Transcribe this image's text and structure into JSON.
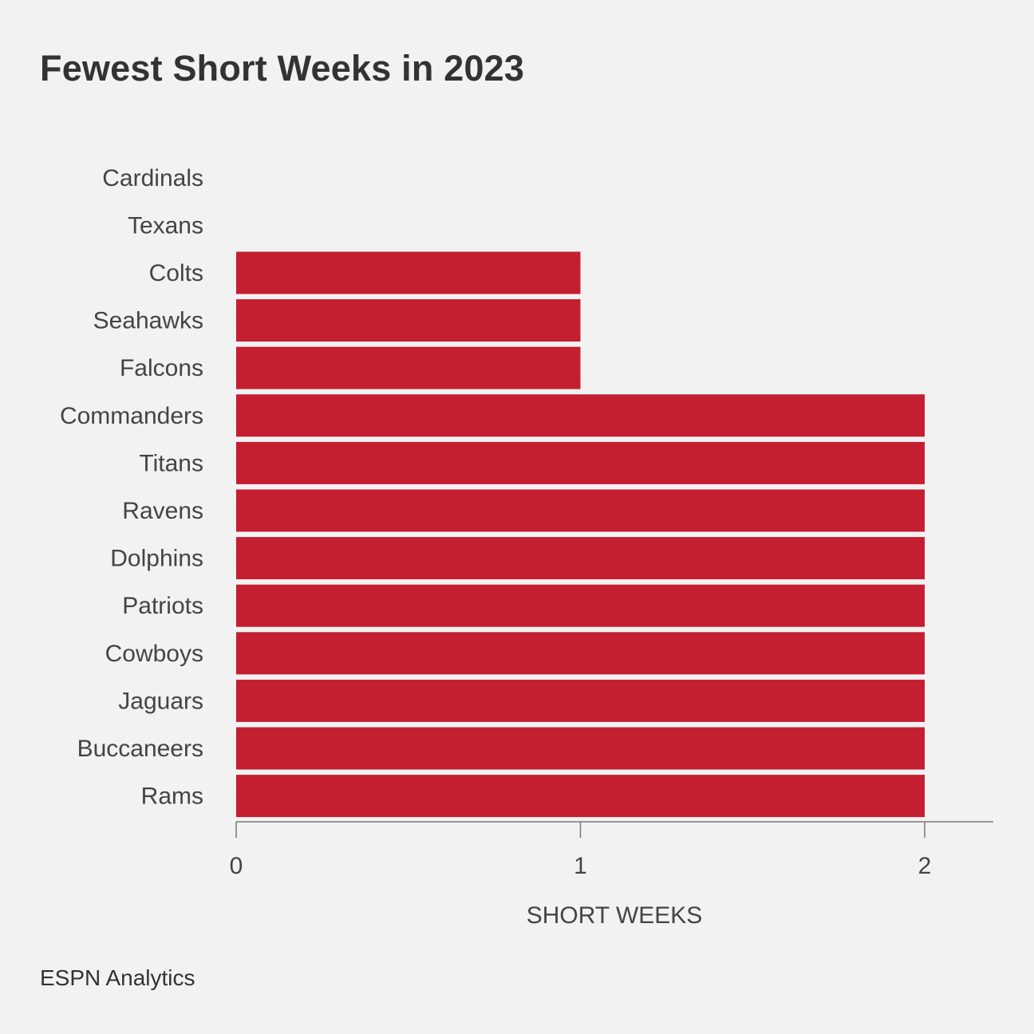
{
  "chart_data": {
    "type": "bar",
    "orientation": "horizontal",
    "title": "Fewest Short Weeks in 2023",
    "xlabel": "SHORT WEEKS",
    "ylabel": "",
    "categories": [
      "Cardinals",
      "Texans",
      "Colts",
      "Seahawks",
      "Falcons",
      "Commanders",
      "Titans",
      "Ravens",
      "Dolphins",
      "Patriots",
      "Cowboys",
      "Jaguars",
      "Buccaneers",
      "Rams"
    ],
    "values": [
      0,
      0,
      1,
      1,
      1,
      2,
      2,
      2,
      2,
      2,
      2,
      2,
      2,
      2
    ],
    "xlim": [
      0,
      2.2
    ],
    "x_ticks": [
      0,
      1,
      2
    ],
    "grid": false,
    "bar_color": "#c41e31",
    "source": "ESPN Analytics"
  }
}
